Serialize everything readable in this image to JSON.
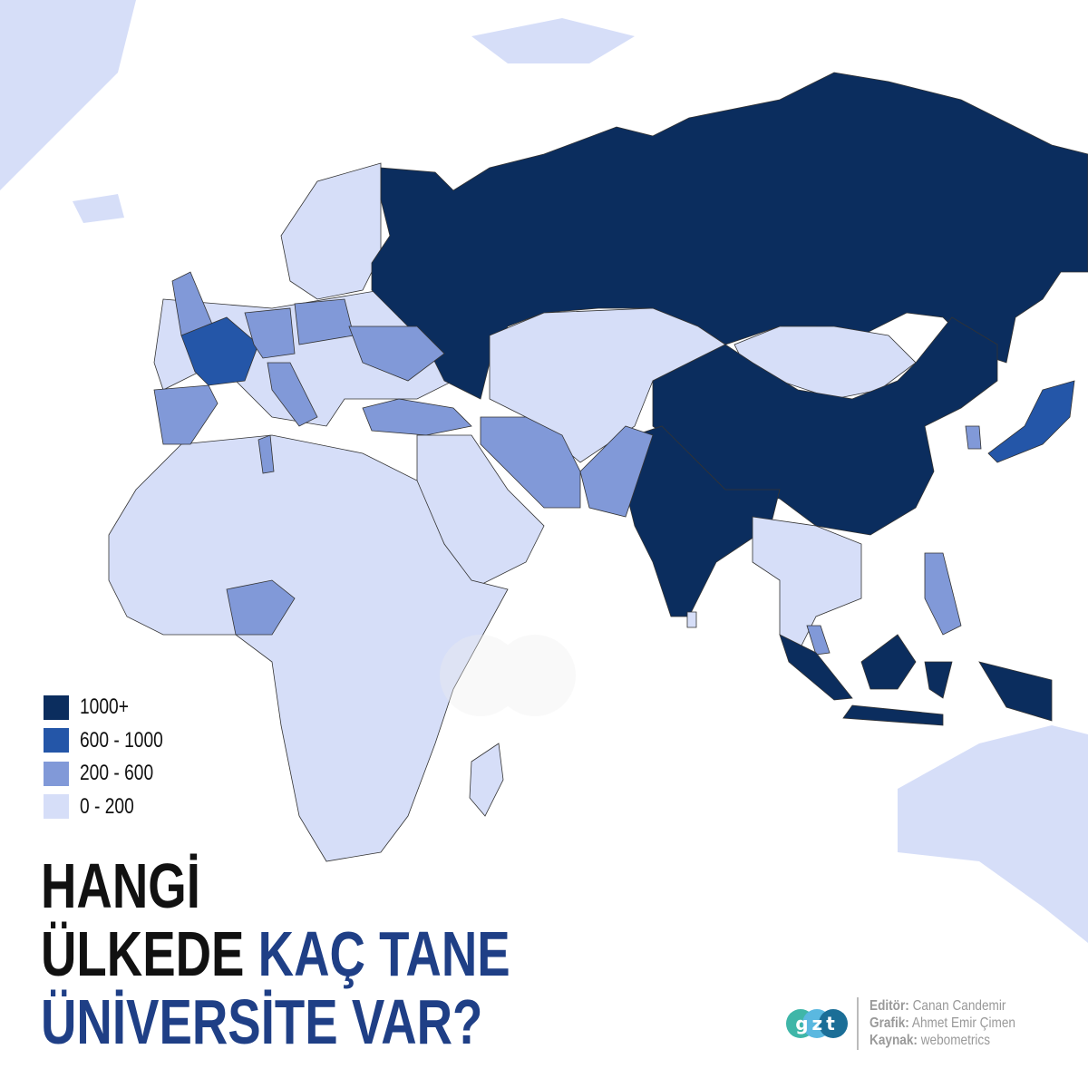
{
  "title": {
    "line1": "HANGİ",
    "line2_black": "ÜLKEDE ",
    "line2_blue": "KAÇ TANE",
    "line3": "ÜNİVERSİTE VAR?"
  },
  "legend": [
    {
      "label": "1000+",
      "color": "#0b2d5e"
    },
    {
      "label": "600 - 1000",
      "color": "#2456a8"
    },
    {
      "label": "200 - 600",
      "color": "#8199d8"
    },
    {
      "label": "0 - 200",
      "color": "#d6def8"
    }
  ],
  "credits": {
    "editor_label": "Editör:",
    "editor": "Canan Candemir",
    "graphic_label": "Grafik:",
    "graphic": "Ahmet Emir Çimen",
    "source_label": "Kaynak:",
    "source": "webometrics"
  },
  "logo": {
    "text": "gzt",
    "colors": [
      "#3fb6a8",
      "#5ab8e0",
      "#1b6e97"
    ]
  },
  "watermark": "gzt"
}
